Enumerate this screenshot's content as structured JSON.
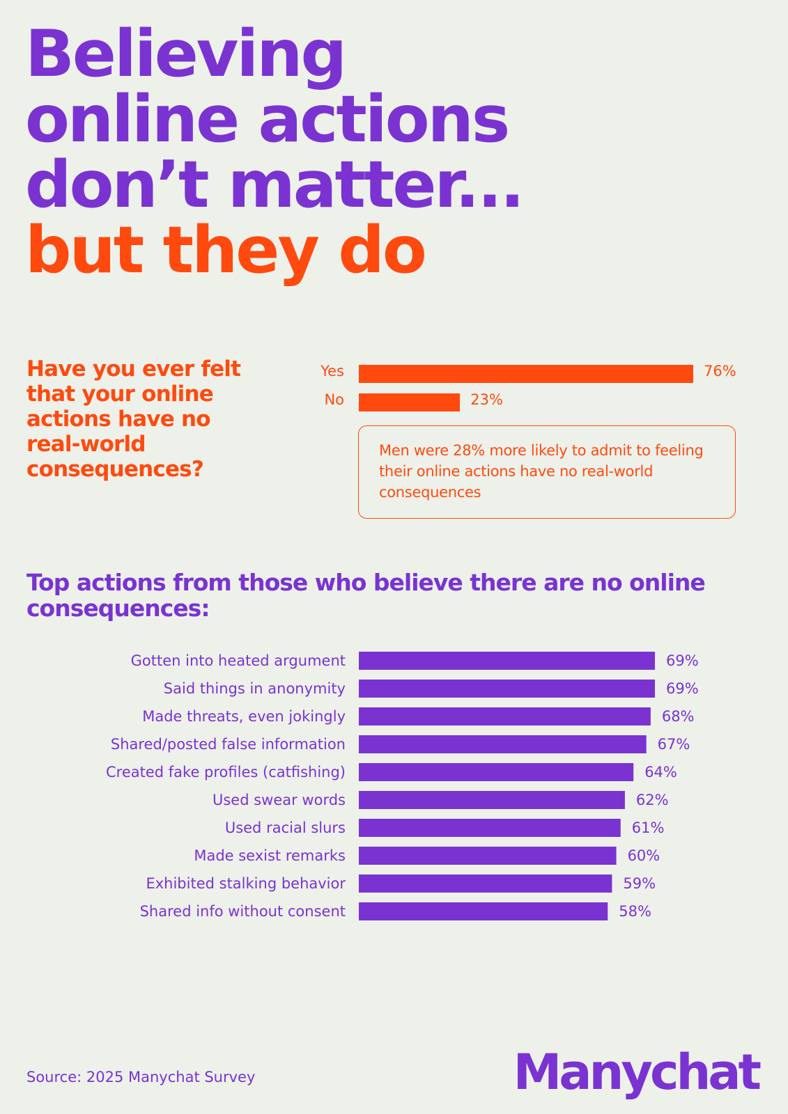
{
  "headline": {
    "line1": "Believing",
    "line2": "online actions",
    "line3": "don’t matter...",
    "line4": "but they do"
  },
  "question": {
    "text": "Have you ever felt that  your online actions have no real-world consequences?",
    "options": [
      {
        "label": "Yes",
        "value": 76,
        "value_label": "76%"
      },
      {
        "label": "No",
        "value": 23,
        "value_label": "23%"
      }
    ],
    "callout": "Men were 28% more likely to admit to feeling their online actions have no real-world consequences"
  },
  "section_title": "Top actions from those who believe there are no online consequences:",
  "chart_data": {
    "type": "bar",
    "orientation": "horizontal",
    "title": "Top actions from those who believe there are no online consequences:",
    "categories": [
      "Gotten into heated argument",
      "Said things in anonymity",
      "Made threats, even jokingly",
      "Shared/posted false information",
      "Created fake profiles (catfishing)",
      "Used swear words",
      "Used racial slurs",
      "Made sexist remarks",
      "Exhibited stalking behavior",
      "Shared info without consent"
    ],
    "values": [
      69,
      69,
      68,
      67,
      64,
      62,
      61,
      60,
      59,
      58
    ],
    "value_labels": [
      "69%",
      "69%",
      "68%",
      "67%",
      "64%",
      "62%",
      "61%",
      "60%",
      "59%",
      "58%"
    ],
    "unit": "%",
    "grid": false
  },
  "colors": {
    "background": "#edf1ea",
    "purple": "#7a33d1",
    "orange": "#ff4a0f"
  },
  "footer": {
    "source": "Source: 2025 Manychat Survey",
    "logo": "Manychat"
  }
}
